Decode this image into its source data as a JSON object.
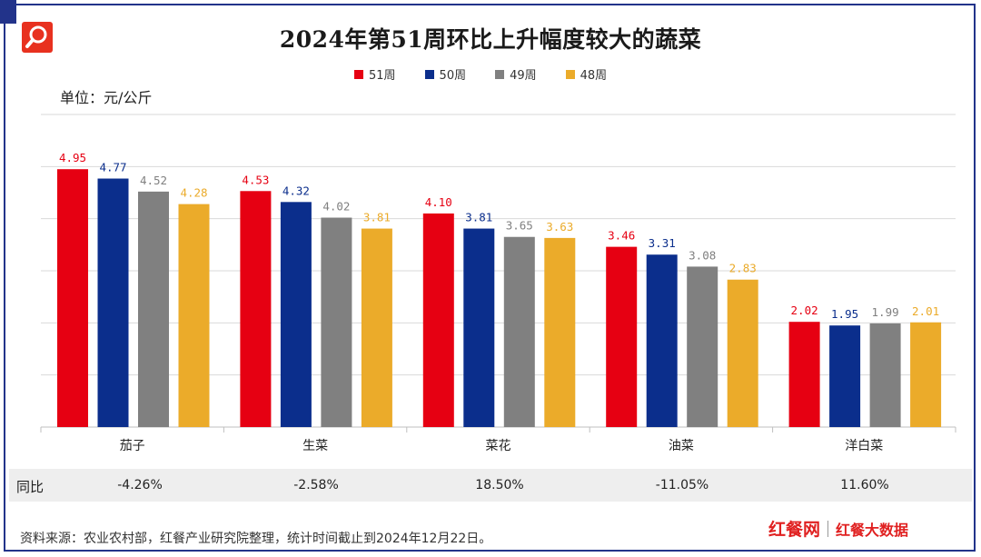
{
  "title": "2024年第51周环比上升幅度较大的蔬菜",
  "unit_label": "单位：元/公斤",
  "yoy_label": "同比",
  "yoy_values": [
    "-4.26%",
    "-2.58%",
    "18.50%",
    "-11.05%",
    "11.60%"
  ],
  "source_text": "资料来源：农业农村部，红餐产业研究院整理，统计时间截止到2024年12月22日。",
  "brand": {
    "name_a": "红餐网",
    "name_b": "红餐大数据"
  },
  "colors": {
    "s51": "#e60012",
    "s50": "#0b2e8c",
    "s49": "#808080",
    "s48": "#ebab2a",
    "frame": "#22338a"
  },
  "chart_data": {
    "type": "bar",
    "categories": [
      "茄子",
      "生菜",
      "菜花",
      "油菜",
      "洋白菜"
    ],
    "series": [
      {
        "name": "51周",
        "values": [
          4.95,
          4.53,
          4.1,
          3.46,
          2.02
        ]
      },
      {
        "name": "50周",
        "values": [
          4.77,
          4.32,
          3.81,
          3.31,
          1.95
        ]
      },
      {
        "name": "49周",
        "values": [
          4.52,
          4.02,
          3.65,
          3.08,
          1.99
        ]
      },
      {
        "name": "48周",
        "values": [
          4.28,
          3.81,
          3.63,
          2.83,
          2.01
        ]
      }
    ],
    "value_labels": [
      [
        "4.95",
        "4.53",
        "4.10",
        "3.46",
        "2.02"
      ],
      [
        "4.77",
        "4.32",
        "3.81",
        "3.31",
        "1.95"
      ],
      [
        "4.52",
        "4.02",
        "3.65",
        "3.08",
        "1.99"
      ],
      [
        "4.28",
        "3.81",
        "3.63",
        "2.83",
        "2.01"
      ]
    ],
    "ylim": [
      0,
      6
    ],
    "grid": true,
    "legend": "top-center"
  }
}
